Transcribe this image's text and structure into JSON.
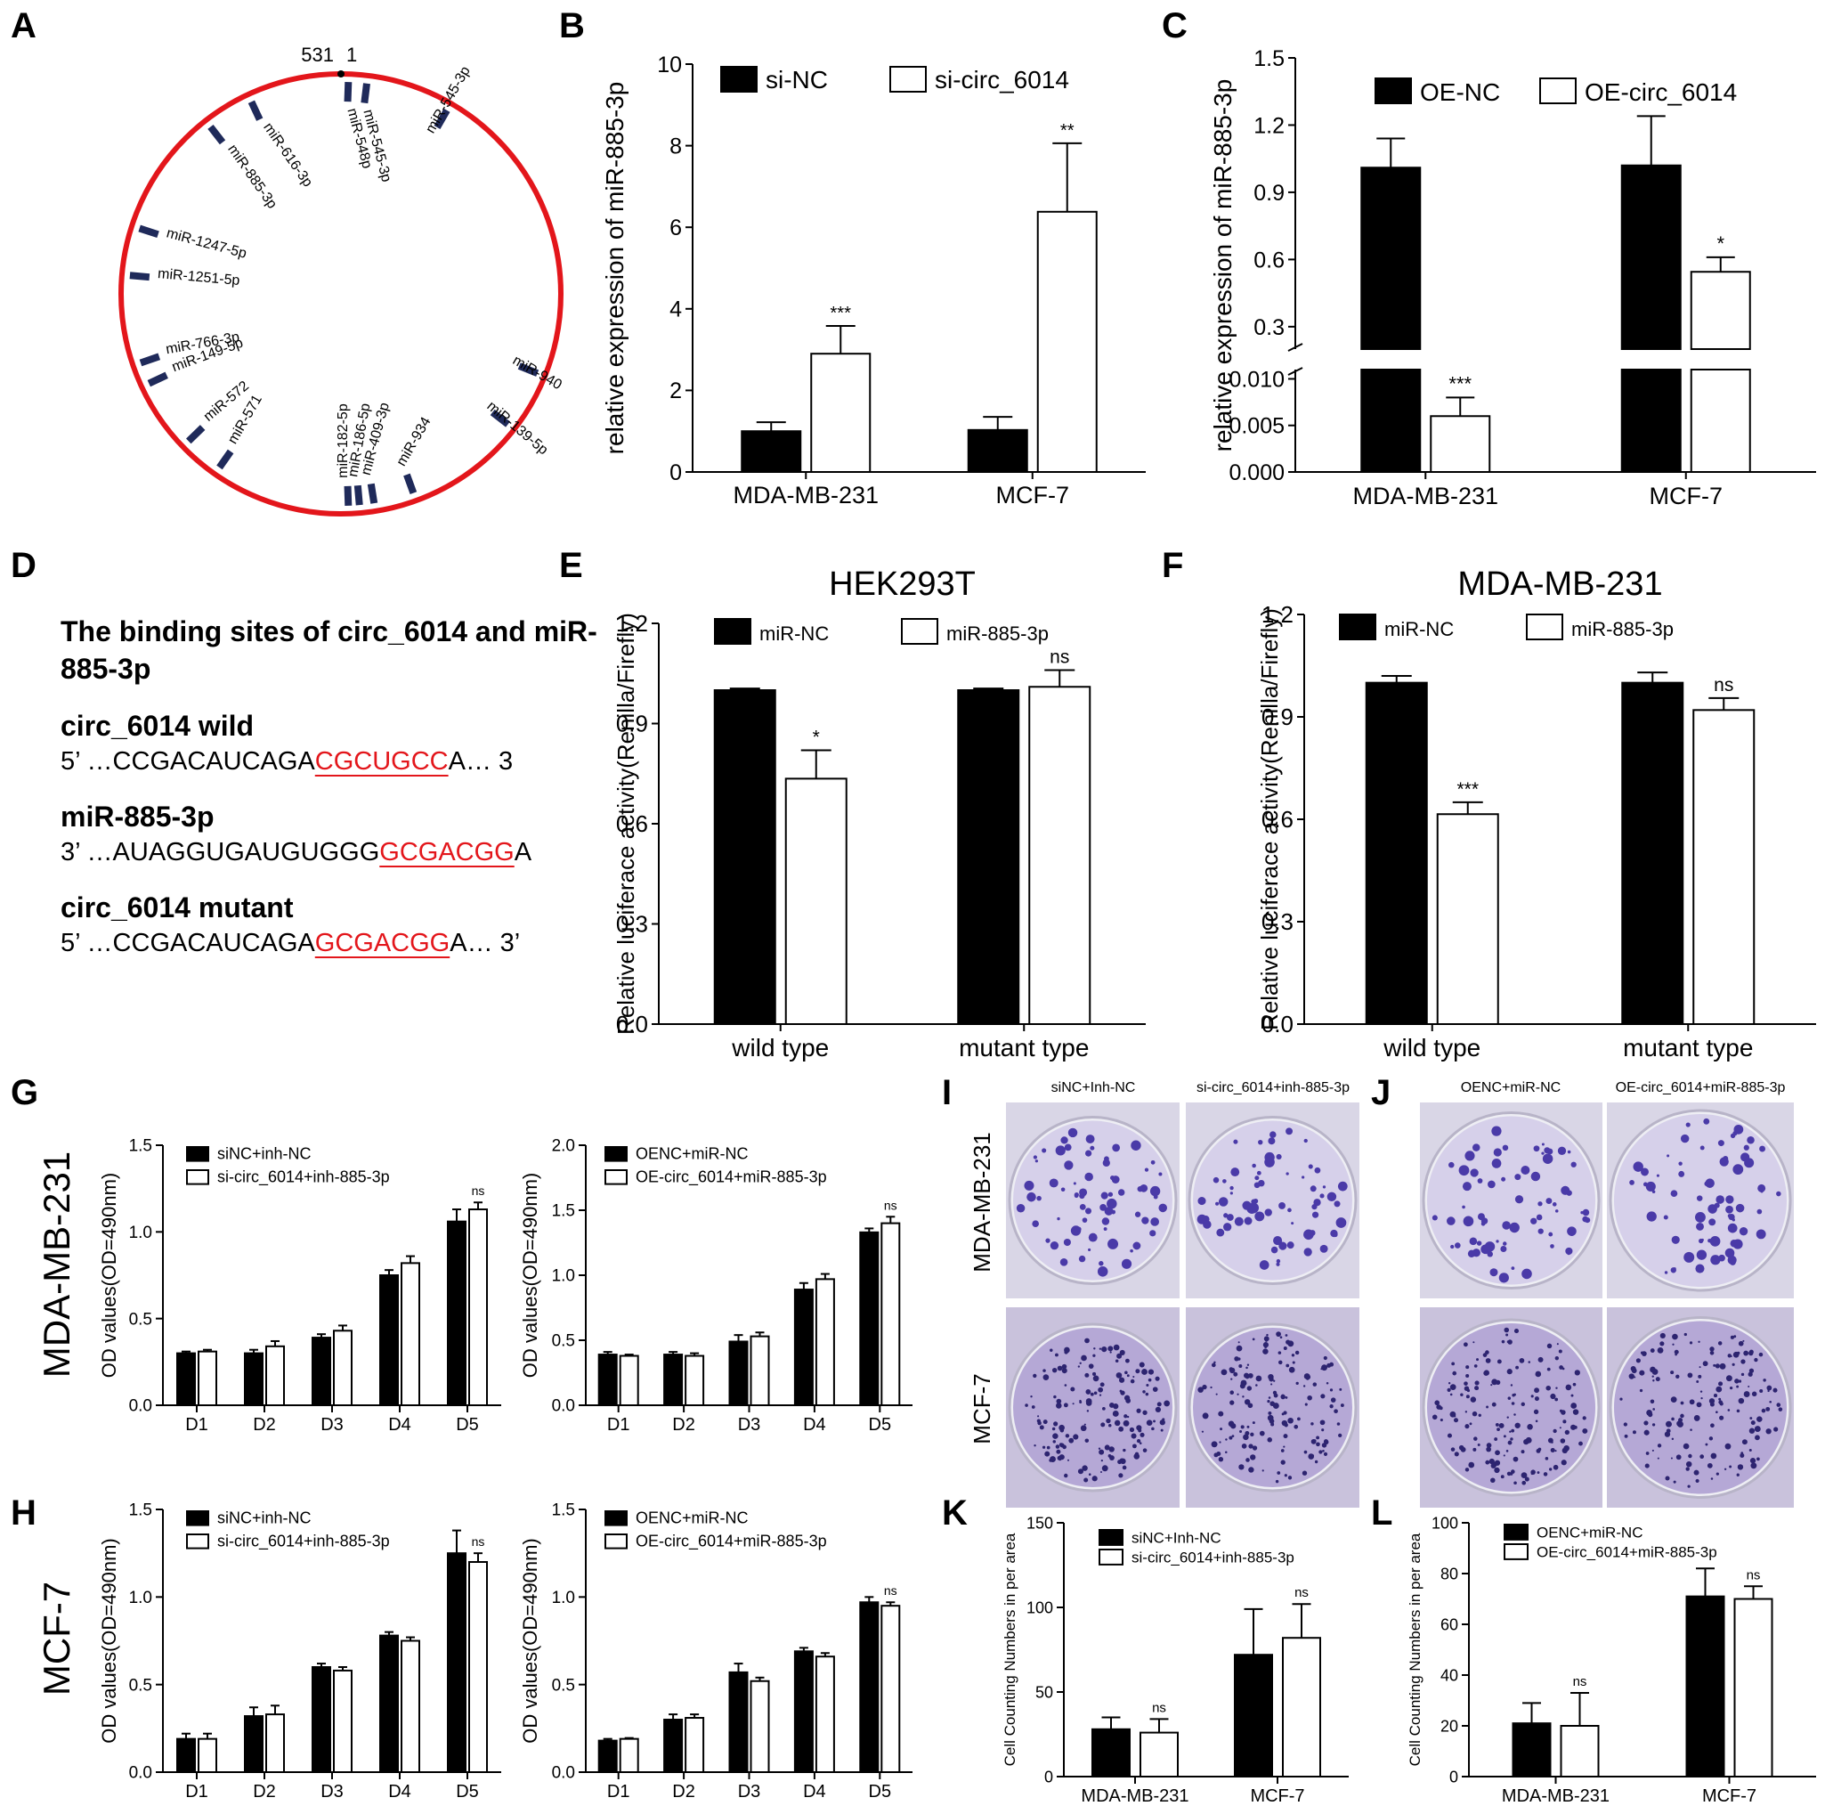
{
  "panel_letters": [
    "A",
    "B",
    "C",
    "D",
    "E",
    "F",
    "G",
    "H",
    "I",
    "J",
    "K",
    "L"
  ],
  "colors": {
    "circle": "#e3161b",
    "site": "#1f2a5a",
    "bar_dark": "#000000",
    "bar_light": "#ffffff",
    "seq_red": "#e3161b"
  },
  "panel_a": {
    "start_label": "531",
    "end_label": "1",
    "mirnas": [
      "miR-548p",
      "miR-545-3p",
      "miR-545-3p",
      "miR-616-3p",
      "miR-885-3p",
      "miR-1247-5p",
      "miR-1251-5p",
      "miR-766-3p",
      "miR-149-5p",
      "miR-572",
      "miR-571",
      "miR-182-5p",
      "miR-186-5p",
      "miR-409-3p",
      "miR-934",
      "miR-940",
      "miR-139-5p"
    ]
  },
  "panel_d": {
    "title": "The binding sites of circ_6014 and miR-885-3p",
    "wild_label": "circ_6014 wild",
    "wild_pre": "5’ …CCGACAUCAGA",
    "wild_site": "CGCUGCC",
    "wild_post": "A… 3",
    "mir_label": "miR-885-3p",
    "mir_pre": "3’ …AUAGGUGAUGUGGG",
    "mir_site": "GCGACGG",
    "mir_post": "A",
    "mut_label": "circ_6014 mutant",
    "mut_pre": "5’ …CCGACAUCAGA",
    "mut_site": "GCGACGG",
    "mut_post": "A… 3’"
  },
  "plates": {
    "I": {
      "col_labels": [
        "siNC+Inh-NC",
        "si-circ_6014+inh-885-3p"
      ]
    },
    "J": {
      "col_labels": [
        "OENC+miR-NC",
        "OE-circ_6014+miR-885-3p"
      ]
    },
    "row_labels": [
      "MDA-MB-231",
      "MCF-7"
    ]
  },
  "side_labels": [
    "MDA-MB-231",
    "MCF-7"
  ],
  "chart_data": [
    {
      "id": "B",
      "type": "bar",
      "title": "",
      "categories": [
        "MDA-MB-231",
        "MCF-7"
      ],
      "series": [
        {
          "name": "si-NC",
          "values": [
            1.0,
            1.03
          ],
          "errors": [
            0.22,
            0.32
          ]
        },
        {
          "name": "si-circ_6014",
          "values": [
            2.9,
            6.38
          ],
          "errors": [
            0.68,
            1.68
          ]
        }
      ],
      "sig": [
        "***",
        "**"
      ],
      "ylabel": "relative expression of miR-885-3p",
      "ylim": [
        0,
        10
      ],
      "yticks": [
        "0",
        "2",
        "4",
        "6",
        "8",
        "10"
      ],
      "legend": "top"
    },
    {
      "id": "C",
      "type": "bar",
      "title": "",
      "categories": [
        "MDA-MB-231",
        "MCF-7"
      ],
      "series": [
        {
          "name": "OE-NC",
          "values": [
            1.01,
            1.02
          ],
          "errors": [
            0.13,
            0.22
          ]
        },
        {
          "name": "OE-circ_6014",
          "values": [
            0.006,
            0.545
          ],
          "errors": [
            0.002,
            0.065
          ]
        }
      ],
      "sig": [
        "***",
        "*"
      ],
      "ylabel": "relative expression of miR-885-3p",
      "broken_axis": true,
      "yticks_upper": [
        "0.3",
        "0.6",
        "0.9",
        "1.2",
        "1.5"
      ],
      "yticks_lower": [
        "0.000",
        "0.005",
        "0.010"
      ],
      "legend": "top"
    },
    {
      "id": "E",
      "type": "bar",
      "title": "HEK293T",
      "categories": [
        "wild type",
        "mutant type"
      ],
      "series": [
        {
          "name": "miR-NC",
          "values": [
            1.0,
            1.0
          ],
          "errors": [
            0.005,
            0.005
          ]
        },
        {
          "name": "miR-885-3p",
          "values": [
            0.735,
            1.01
          ],
          "errors": [
            0.085,
            0.05
          ]
        }
      ],
      "sig": [
        "*",
        "ns"
      ],
      "ylabel": "Relative luciferace activity(Renilla/Firefly)",
      "ylim": [
        0,
        1.2
      ],
      "yticks": [
        "0.0",
        "0.3",
        "0.6",
        "0.9",
        "1.2"
      ],
      "legend": "top"
    },
    {
      "id": "F",
      "type": "bar",
      "title": "MDA-MB-231",
      "categories": [
        "wild type",
        "mutant type"
      ],
      "series": [
        {
          "name": "miR-NC",
          "values": [
            1.0,
            1.0
          ],
          "errors": [
            0.02,
            0.03
          ]
        },
        {
          "name": "miR-885-3p",
          "values": [
            0.615,
            0.92
          ],
          "errors": [
            0.035,
            0.035
          ]
        }
      ],
      "sig": [
        "***",
        "ns"
      ],
      "ylabel": "Relative luciferace activity(Renilla/Firefly)",
      "ylim": [
        0,
        1.2
      ],
      "yticks": [
        "0.0",
        "0.3",
        "0.6",
        "0.9",
        "1.2"
      ],
      "legend": "top"
    },
    {
      "id": "G1",
      "type": "bar",
      "title": "",
      "categories": [
        "D1",
        "D2",
        "D3",
        "D4",
        "D5"
      ],
      "series": [
        {
          "name": "siNC+inh-NC",
          "values": [
            0.3,
            0.3,
            0.39,
            0.75,
            1.06
          ],
          "errors": [
            0.01,
            0.02,
            0.02,
            0.03,
            0.07
          ]
        },
        {
          "name": "si-circ_6014+inh-885-3p",
          "values": [
            0.31,
            0.34,
            0.43,
            0.82,
            1.13
          ],
          "errors": [
            0.01,
            0.03,
            0.03,
            0.04,
            0.04
          ]
        }
      ],
      "sig": [
        "",
        "",
        "",
        "",
        "ns"
      ],
      "ylabel": "OD values(OD=490nm)",
      "ylim": [
        0,
        1.5
      ],
      "yticks": [
        "0.0",
        "0.5",
        "1.0",
        "1.5"
      ],
      "legend": "top-left"
    },
    {
      "id": "G2",
      "type": "bar",
      "title": "",
      "categories": [
        "D1",
        "D2",
        "D3",
        "D4",
        "D5"
      ],
      "series": [
        {
          "name": "OENC+miR-NC",
          "values": [
            0.39,
            0.39,
            0.49,
            0.89,
            1.33
          ],
          "errors": [
            0.02,
            0.02,
            0.05,
            0.05,
            0.03
          ]
        },
        {
          "name": "OE-circ_6014+miR-885-3p",
          "values": [
            0.38,
            0.38,
            0.53,
            0.97,
            1.4
          ],
          "errors": [
            0.01,
            0.02,
            0.03,
            0.04,
            0.05
          ]
        }
      ],
      "sig": [
        "",
        "",
        "",
        "",
        "ns"
      ],
      "ylabel": "OD values(OD=490nm)",
      "ylim": [
        0,
        2.0
      ],
      "yticks": [
        "0.0",
        "0.5",
        "1.0",
        "1.5",
        "2.0"
      ],
      "legend": "top-left"
    },
    {
      "id": "H1",
      "type": "bar",
      "title": "",
      "categories": [
        "D1",
        "D2",
        "D3",
        "D4",
        "D5"
      ],
      "series": [
        {
          "name": "siNC+inh-NC",
          "values": [
            0.19,
            0.32,
            0.6,
            0.78,
            1.25
          ],
          "errors": [
            0.03,
            0.05,
            0.02,
            0.02,
            0.13
          ]
        },
        {
          "name": "si-circ_6014+inh-885-3p",
          "values": [
            0.19,
            0.33,
            0.58,
            0.75,
            1.2
          ],
          "errors": [
            0.03,
            0.05,
            0.02,
            0.02,
            0.05
          ]
        }
      ],
      "sig": [
        "",
        "",
        "",
        "",
        "ns"
      ],
      "ylabel": "OD values(OD=490nm)",
      "ylim": [
        0,
        1.5
      ],
      "yticks": [
        "0.0",
        "0.5",
        "1.0",
        "1.5"
      ],
      "legend": "top-left"
    },
    {
      "id": "H2",
      "type": "bar",
      "title": "",
      "categories": [
        "D1",
        "D2",
        "D3",
        "D4",
        "D5"
      ],
      "series": [
        {
          "name": "OENC+miR-NC",
          "values": [
            0.18,
            0.3,
            0.57,
            0.69,
            0.97
          ],
          "errors": [
            0.01,
            0.03,
            0.05,
            0.02,
            0.03
          ]
        },
        {
          "name": "OE-circ_6014+miR-885-3p",
          "values": [
            0.19,
            0.31,
            0.52,
            0.66,
            0.95
          ],
          "errors": [
            0.005,
            0.02,
            0.02,
            0.02,
            0.02
          ]
        }
      ],
      "sig": [
        "",
        "",
        "",
        "",
        "ns"
      ],
      "ylabel": "OD values(OD=490nm)",
      "ylim": [
        0,
        1.5
      ],
      "yticks": [
        "0.0",
        "0.5",
        "1.0",
        "1.5"
      ],
      "legend": "top-left"
    },
    {
      "id": "K",
      "type": "bar",
      "title": "",
      "categories": [
        "MDA-MB-231",
        "MCF-7"
      ],
      "series": [
        {
          "name": "siNC+Inh-NC",
          "values": [
            28,
            72
          ],
          "errors": [
            7,
            27
          ]
        },
        {
          "name": "si-circ_6014+inh-885-3p",
          "values": [
            26,
            82
          ],
          "errors": [
            8,
            20
          ]
        }
      ],
      "sig": [
        "ns",
        "ns"
      ],
      "ylabel": "Cell Counting Numbers in per area",
      "ylim": [
        0,
        150
      ],
      "yticks": [
        "0",
        "50",
        "100",
        "150"
      ],
      "legend": "top"
    },
    {
      "id": "L",
      "type": "bar",
      "title": "",
      "categories": [
        "MDA-MB-231",
        "MCF-7"
      ],
      "series": [
        {
          "name": "OENC+miR-NC",
          "values": [
            21,
            71
          ],
          "errors": [
            8,
            11
          ]
        },
        {
          "name": "OE-circ_6014+miR-885-3p",
          "values": [
            20,
            70
          ],
          "errors": [
            13,
            5
          ]
        }
      ],
      "sig": [
        "ns",
        "ns"
      ],
      "ylabel": "Cell Counting Numbers in per area",
      "ylim": [
        0,
        100
      ],
      "yticks": [
        "0",
        "20",
        "40",
        "60",
        "80",
        "100"
      ],
      "legend": "top-left"
    }
  ]
}
